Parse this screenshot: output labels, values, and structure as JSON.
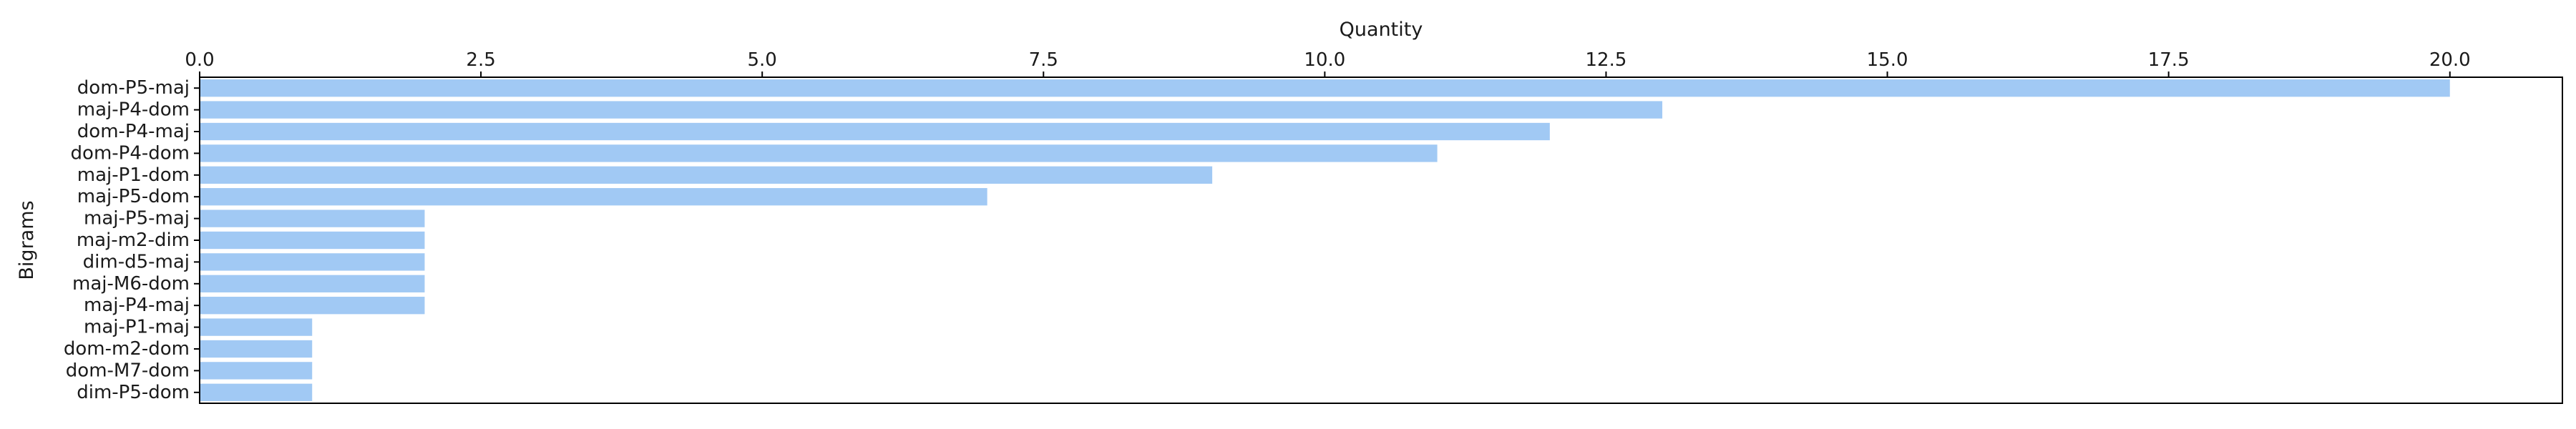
{
  "chart_data": {
    "type": "bar",
    "orientation": "horizontal",
    "categories": [
      "dom-P5-maj",
      "maj-P4-dom",
      "dom-P4-maj",
      "dom-P4-dom",
      "maj-P1-dom",
      "maj-P5-dom",
      "maj-P5-maj",
      "maj-m2-dim",
      "dim-d5-maj",
      "maj-M6-dom",
      "maj-P4-maj",
      "maj-P1-maj",
      "dom-m2-dom",
      "dom-M7-dom",
      "dim-P5-dom"
    ],
    "values": [
      20,
      13,
      12,
      11,
      9,
      7,
      2,
      2,
      2,
      2,
      2,
      1,
      1,
      1,
      1
    ],
    "xlabel": "Quantity",
    "ylabel": "Bigrams",
    "xlim": [
      0,
      21
    ],
    "xticks": [
      0.0,
      2.5,
      5.0,
      7.5,
      10.0,
      12.5,
      15.0,
      17.5,
      20.0
    ],
    "xtick_labels": [
      "0.0",
      "2.5",
      "5.0",
      "7.5",
      "10.0",
      "12.5",
      "15.0",
      "17.5",
      "20.0"
    ],
    "x_axis_position": "top",
    "grid": false,
    "bar_color": "#a1c9f4"
  }
}
